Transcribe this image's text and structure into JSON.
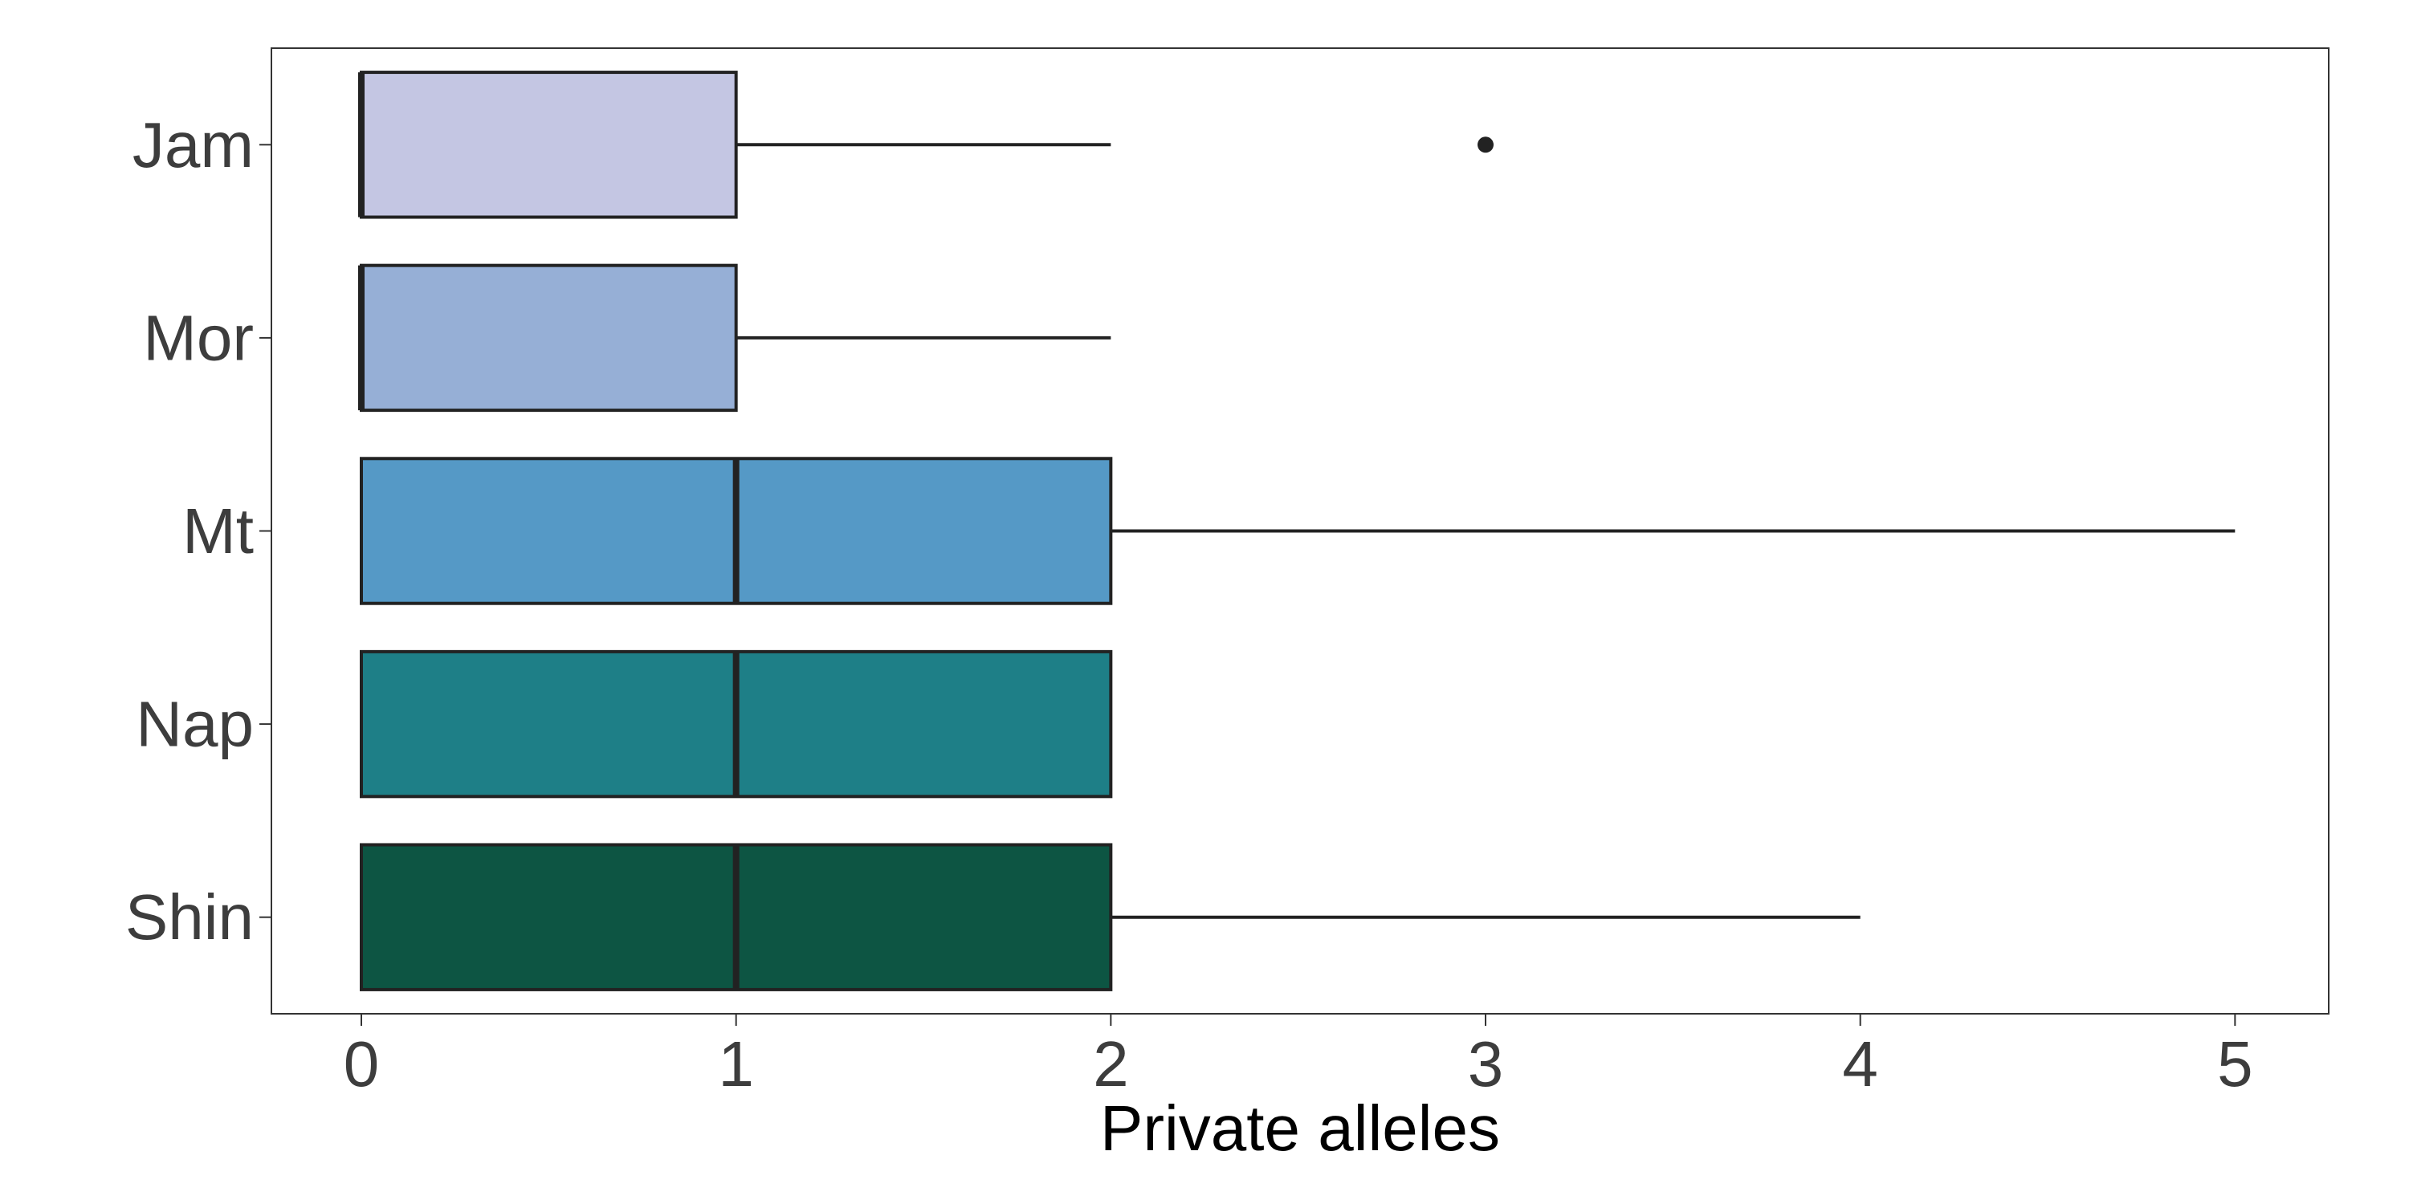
{
  "chart_data": {
    "type": "boxplot",
    "orientation": "horizontal",
    "title": "",
    "xlabel": "Private alleles",
    "ylabel": "",
    "xlim": [
      -0.24,
      5.25
    ],
    "xticks": [
      0,
      1,
      2,
      3,
      4,
      5
    ],
    "grid": false,
    "legend": "none",
    "categories": [
      "Jam",
      "Mor",
      "Mt",
      "Nap",
      "Shin"
    ],
    "boxes": [
      {
        "name": "Jam",
        "min": 0,
        "q1": 0,
        "median": 0,
        "q3": 1,
        "max": 2,
        "outliers": [
          3
        ],
        "color": "#c4c6e3"
      },
      {
        "name": "Mor",
        "min": 0,
        "q1": 0,
        "median": 0,
        "q3": 1,
        "max": 2,
        "outliers": [],
        "color": "#96afd6"
      },
      {
        "name": "Mt",
        "min": 0,
        "q1": 0,
        "median": 1,
        "q3": 2,
        "max": 5,
        "outliers": [],
        "color": "#5599c6"
      },
      {
        "name": "Nap",
        "min": 0,
        "q1": 0,
        "median": 1,
        "q3": 2,
        "max": 2,
        "outliers": [],
        "color": "#1e7f87"
      },
      {
        "name": "Shin",
        "min": 0,
        "q1": 0,
        "median": 1,
        "q3": 2,
        "max": 4,
        "outliers": [],
        "color": "#0d5543"
      }
    ]
  }
}
